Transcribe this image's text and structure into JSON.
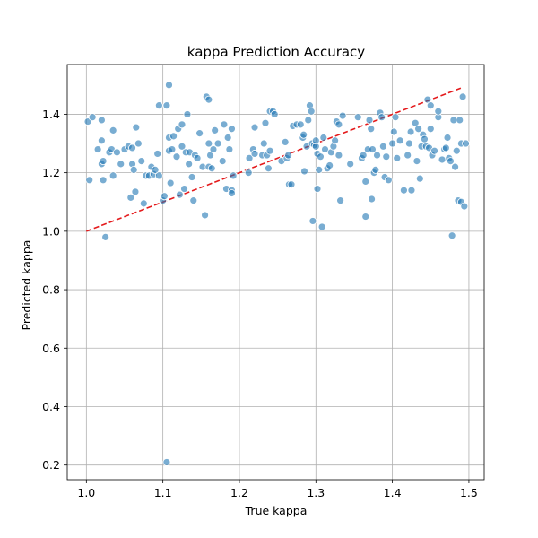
{
  "chart_data": {
    "type": "scatter",
    "title": "kappa Prediction Accuracy",
    "xlabel": "True kappa",
    "ylabel": "Predicted kappa",
    "xlim": [
      0.975,
      1.52
    ],
    "ylim": [
      0.15,
      1.57
    ],
    "xticks": [
      "1.0",
      "1.1",
      "1.2",
      "1.3",
      "1.4",
      "1.5"
    ],
    "xtick_values": [
      1.0,
      1.1,
      1.2,
      1.3,
      1.4,
      1.5
    ],
    "yticks": [
      "0.2",
      "0.4",
      "0.6",
      "0.8",
      "1.0",
      "1.2",
      "1.4"
    ],
    "ytick_values": [
      0.2,
      0.4,
      0.6,
      0.8,
      1.0,
      1.2,
      1.4
    ],
    "grid": true,
    "colors": {
      "points": "#1f77b4",
      "line": "#e41a1c"
    },
    "reference_line": {
      "x": [
        1.0,
        1.49
      ],
      "y": [
        1.0,
        1.49
      ],
      "style": "dashed"
    },
    "points": [
      [
        1.002,
        1.375
      ],
      [
        1.008,
        1.39
      ],
      [
        1.004,
        1.175
      ],
      [
        1.015,
        1.28
      ],
      [
        1.02,
        1.38
      ],
      [
        1.02,
        1.31
      ],
      [
        1.02,
        1.23
      ],
      [
        1.022,
        1.24
      ],
      [
        1.025,
        0.98
      ],
      [
        1.022,
        1.175
      ],
      [
        1.03,
        1.27
      ],
      [
        1.033,
        1.28
      ],
      [
        1.035,
        1.19
      ],
      [
        1.035,
        1.345
      ],
      [
        1.04,
        1.27
      ],
      [
        1.045,
        1.23
      ],
      [
        1.05,
        1.28
      ],
      [
        1.055,
        1.29
      ],
      [
        1.058,
        1.115
      ],
      [
        1.06,
        1.23
      ],
      [
        1.06,
        1.285
      ],
      [
        1.062,
        1.21
      ],
      [
        1.064,
        1.135
      ],
      [
        1.065,
        1.355
      ],
      [
        1.068,
        1.3
      ],
      [
        1.072,
        1.24
      ],
      [
        1.075,
        1.095
      ],
      [
        1.078,
        1.19
      ],
      [
        1.082,
        1.19
      ],
      [
        1.085,
        1.22
      ],
      [
        1.088,
        1.195
      ],
      [
        1.09,
        1.21
      ],
      [
        1.093,
        1.265
      ],
      [
        1.095,
        1.43
      ],
      [
        1.095,
        1.19
      ],
      [
        1.1,
        1.105
      ],
      [
        1.102,
        1.12
      ],
      [
        1.105,
        0.21
      ],
      [
        1.105,
        1.43
      ],
      [
        1.108,
        1.5
      ],
      [
        1.108,
        1.275
      ],
      [
        1.108,
        1.32
      ],
      [
        1.11,
        1.165
      ],
      [
        1.112,
        1.28
      ],
      [
        1.114,
        1.325
      ],
      [
        1.118,
        1.255
      ],
      [
        1.12,
        1.35
      ],
      [
        1.122,
        1.125
      ],
      [
        1.125,
        1.29
      ],
      [
        1.125,
        1.365
      ],
      [
        1.128,
        1.145
      ],
      [
        1.13,
        1.27
      ],
      [
        1.132,
        1.4
      ],
      [
        1.134,
        1.23
      ],
      [
        1.135,
        1.27
      ],
      [
        1.138,
        1.185
      ],
      [
        1.14,
        1.105
      ],
      [
        1.142,
        1.26
      ],
      [
        1.145,
        1.25
      ],
      [
        1.148,
        1.335
      ],
      [
        1.152,
        1.22
      ],
      [
        1.155,
        1.055
      ],
      [
        1.157,
        1.46
      ],
      [
        1.16,
        1.45
      ],
      [
        1.16,
        1.3
      ],
      [
        1.16,
        1.22
      ],
      [
        1.162,
        1.26
      ],
      [
        1.164,
        1.215
      ],
      [
        1.166,
        1.28
      ],
      [
        1.168,
        1.345
      ],
      [
        1.172,
        1.3
      ],
      [
        1.178,
        1.24
      ],
      [
        1.18,
        1.365
      ],
      [
        1.183,
        1.145
      ],
      [
        1.185,
        1.32
      ],
      [
        1.187,
        1.28
      ],
      [
        1.19,
        1.14
      ],
      [
        1.19,
        1.13
      ],
      [
        1.192,
        1.19
      ],
      [
        1.19,
        1.35
      ],
      [
        1.212,
        1.2
      ],
      [
        1.213,
        1.25
      ],
      [
        1.218,
        1.28
      ],
      [
        1.22,
        1.265
      ],
      [
        1.22,
        1.355
      ],
      [
        1.23,
        1.26
      ],
      [
        1.232,
        1.3
      ],
      [
        1.234,
        1.37
      ],
      [
        1.236,
        1.26
      ],
      [
        1.238,
        1.215
      ],
      [
        1.24,
        1.41
      ],
      [
        1.24,
        1.275
      ],
      [
        1.244,
        1.41
      ],
      [
        1.246,
        1.4
      ],
      [
        1.255,
        1.24
      ],
      [
        1.26,
        1.305
      ],
      [
        1.262,
        1.25
      ],
      [
        1.264,
        1.26
      ],
      [
        1.265,
        1.16
      ],
      [
        1.268,
        1.16
      ],
      [
        1.27,
        1.36
      ],
      [
        1.275,
        1.365
      ],
      [
        1.28,
        1.365
      ],
      [
        1.283,
        1.32
      ],
      [
        1.284,
        1.33
      ],
      [
        1.285,
        1.205
      ],
      [
        1.288,
        1.29
      ],
      [
        1.29,
        1.38
      ],
      [
        1.292,
        1.43
      ],
      [
        1.294,
        1.41
      ],
      [
        1.295,
        1.3
      ],
      [
        1.296,
        1.035
      ],
      [
        1.298,
        1.295
      ],
      [
        1.3,
        1.29
      ],
      [
        1.3,
        1.31
      ],
      [
        1.302,
        1.145
      ],
      [
        1.302,
        1.265
      ],
      [
        1.304,
        1.21
      ],
      [
        1.306,
        1.255
      ],
      [
        1.308,
        1.015
      ],
      [
        1.31,
        1.32
      ],
      [
        1.312,
        1.28
      ],
      [
        1.315,
        1.215
      ],
      [
        1.318,
        1.225
      ],
      [
        1.32,
        1.27
      ],
      [
        1.323,
        1.29
      ],
      [
        1.325,
        1.31
      ],
      [
        1.327,
        1.375
      ],
      [
        1.33,
        1.365
      ],
      [
        1.33,
        1.26
      ],
      [
        1.332,
        1.105
      ],
      [
        1.335,
        1.395
      ],
      [
        1.345,
        1.23
      ],
      [
        1.355,
        1.39
      ],
      [
        1.36,
        1.25
      ],
      [
        1.362,
        1.26
      ],
      [
        1.365,
        1.05
      ],
      [
        1.365,
        1.17
      ],
      [
        1.368,
        1.28
      ],
      [
        1.37,
        1.38
      ],
      [
        1.372,
        1.35
      ],
      [
        1.373,
        1.11
      ],
      [
        1.374,
        1.28
      ],
      [
        1.376,
        1.2
      ],
      [
        1.378,
        1.21
      ],
      [
        1.38,
        1.26
      ],
      [
        1.384,
        1.405
      ],
      [
        1.386,
        1.39
      ],
      [
        1.388,
        1.29
      ],
      [
        1.39,
        1.185
      ],
      [
        1.392,
        1.255
      ],
      [
        1.395,
        1.175
      ],
      [
        1.4,
        1.3
      ],
      [
        1.402,
        1.34
      ],
      [
        1.404,
        1.39
      ],
      [
        1.406,
        1.25
      ],
      [
        1.41,
        1.31
      ],
      [
        1.415,
        1.14
      ],
      [
        1.42,
        1.26
      ],
      [
        1.422,
        1.3
      ],
      [
        1.424,
        1.34
      ],
      [
        1.425,
        1.14
      ],
      [
        1.43,
        1.37
      ],
      [
        1.432,
        1.24
      ],
      [
        1.434,
        1.35
      ],
      [
        1.436,
        1.18
      ],
      [
        1.438,
        1.29
      ],
      [
        1.44,
        1.33
      ],
      [
        1.442,
        1.315
      ],
      [
        1.444,
        1.29
      ],
      [
        1.446,
        1.45
      ],
      [
        1.448,
        1.285
      ],
      [
        1.45,
        1.35
      ],
      [
        1.45,
        1.43
      ],
      [
        1.452,
        1.26
      ],
      [
        1.455,
        1.275
      ],
      [
        1.46,
        1.39
      ],
      [
        1.46,
        1.41
      ],
      [
        1.465,
        1.245
      ],
      [
        1.468,
        1.28
      ],
      [
        1.47,
        1.285
      ],
      [
        1.472,
        1.32
      ],
      [
        1.474,
        1.25
      ],
      [
        1.476,
        1.24
      ],
      [
        1.478,
        0.985
      ],
      [
        1.48,
        1.38
      ],
      [
        1.482,
        1.22
      ],
      [
        1.484,
        1.275
      ],
      [
        1.486,
        1.105
      ],
      [
        1.488,
        1.38
      ],
      [
        1.49,
        1.1
      ],
      [
        1.49,
        1.3
      ],
      [
        1.492,
        1.46
      ],
      [
        1.494,
        1.085
      ],
      [
        1.496,
        1.3
      ]
    ]
  }
}
